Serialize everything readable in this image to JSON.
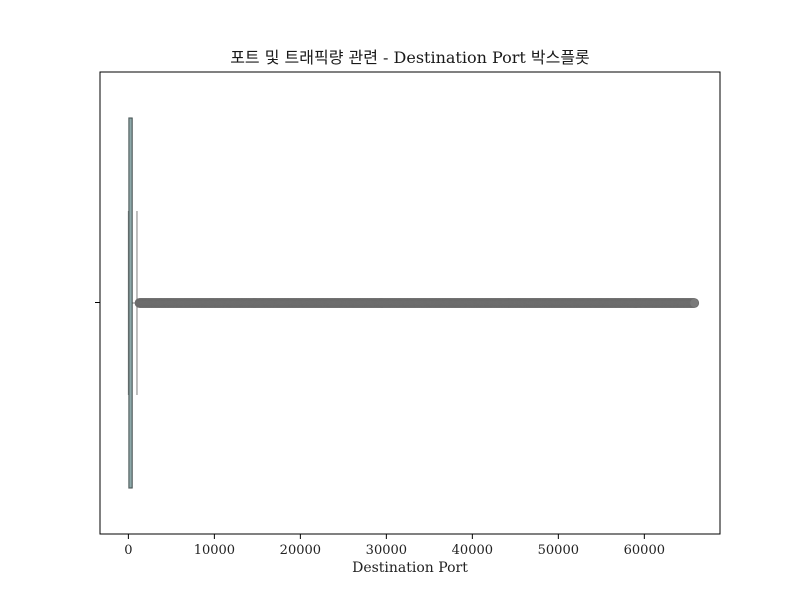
{
  "chart_data": {
    "type": "box",
    "orientation": "horizontal",
    "title": "포트 및 트래픽량 관련 - Destination Port 박스플롯",
    "xlabel": "Destination Port",
    "ylabel": "",
    "xlim": [
      -3300,
      68800
    ],
    "xticks": [
      0,
      10000,
      20000,
      30000,
      40000,
      50000,
      60000
    ],
    "tick_labels": [
      "0",
      "10000",
      "20000",
      "30000",
      "40000",
      "50000",
      "60000"
    ],
    "grid": false,
    "box": {
      "whislo": 0,
      "q1": 53,
      "median": 80,
      "q3": 443,
      "whishi": 1000
    },
    "fliers": {
      "from": 1000,
      "to": 65500,
      "count": 600
    },
    "colors": {
      "box_fill": "#8ea9aa",
      "box_edge": "#3d4a4a",
      "whisker": "#7f7f7f",
      "flier": "#7a7a7a"
    }
  }
}
